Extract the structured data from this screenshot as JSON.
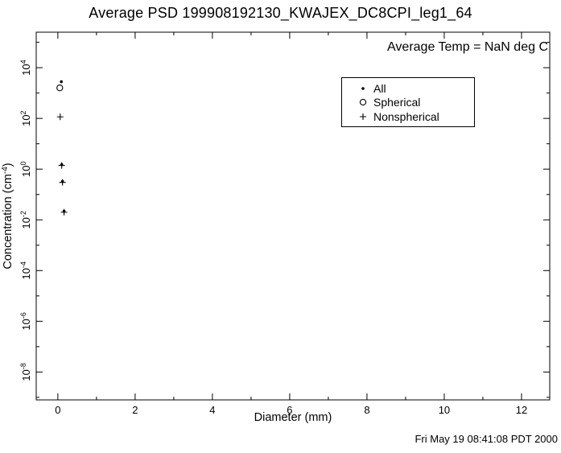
{
  "page": {
    "background": "#ffffff",
    "foreground": "#000000",
    "footer_timestamp": "Fri May 19 08:41:08 PDT 2000"
  },
  "chart_data": {
    "type": "scatter",
    "title": "Average PSD 199908192130_KWAJEX_DC8CPI_leg1_64",
    "annotation": "Average Temp = NaN deg C",
    "xlabel": "Diameter (mm)",
    "ylabel": "Concentration (cm^-4)",
    "grid": "off",
    "x_axis": {
      "min": -0.56,
      "max": 12.73,
      "ticks": [
        0,
        2,
        4,
        6,
        8,
        10,
        12
      ],
      "minor_ticks": [
        1,
        3,
        5,
        7,
        9,
        11
      ]
    },
    "y_axis": {
      "scale": "log",
      "min_exp": -9.1,
      "max_exp": 5.4,
      "tick_exponents": [
        4,
        2,
        0,
        -2,
        -4,
        -6,
        -8
      ],
      "tick_labels": [
        "10^4",
        "10^2",
        "10^0",
        "10^-2",
        "10^-4",
        "10^-6",
        "10^-8"
      ],
      "minor_tick_exponents": [
        5,
        3,
        1,
        -1,
        -3,
        -5,
        -7,
        -9
      ]
    },
    "legend": {
      "position": "upper-right-inside",
      "entries": [
        {
          "marker": "dot",
          "label": "All"
        },
        {
          "marker": "circle",
          "label": "Spherical"
        },
        {
          "marker": "plus",
          "label": "Nonspherical"
        }
      ]
    },
    "series": [
      {
        "name": "All",
        "marker": "dot",
        "points": [
          [
            0.09,
            2800
          ],
          [
            0.1,
            1.5
          ],
          [
            0.12,
            0.33
          ],
          [
            0.16,
            0.022
          ]
        ]
      },
      {
        "name": "Spherical",
        "marker": "circle",
        "points": [
          [
            0.05,
            1600
          ]
        ]
      },
      {
        "name": "Nonspherical",
        "marker": "plus",
        "points": [
          [
            0.06,
            115
          ],
          [
            0.1,
            1.4
          ],
          [
            0.12,
            0.3
          ],
          [
            0.16,
            0.02
          ]
        ]
      }
    ]
  }
}
